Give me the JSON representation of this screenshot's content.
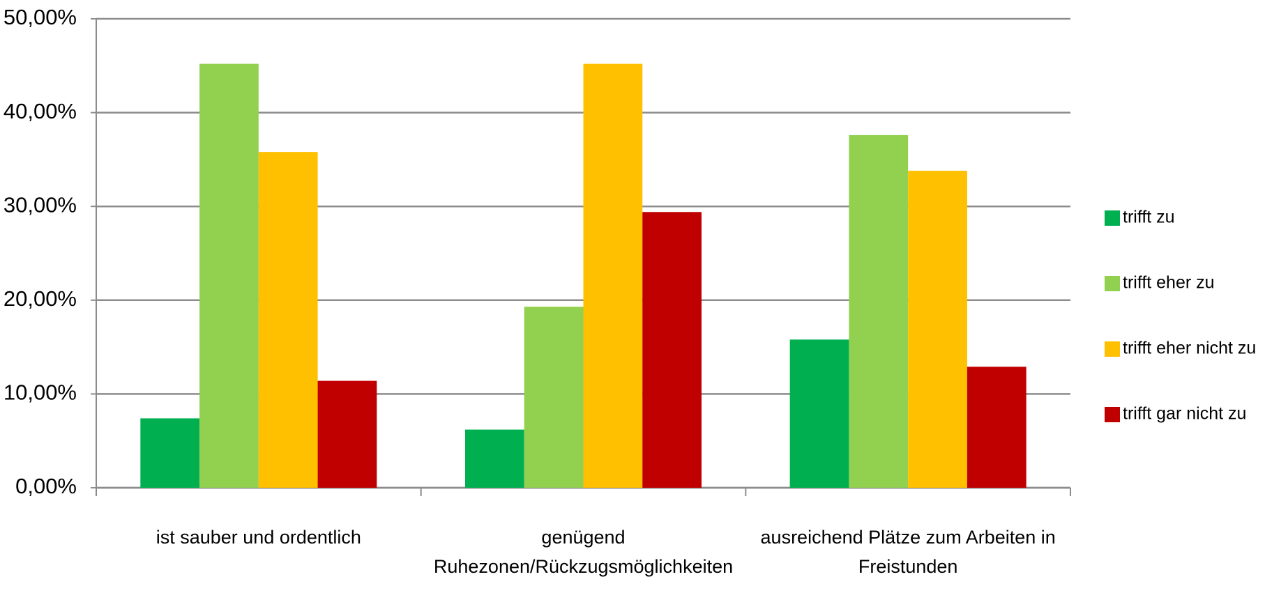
{
  "chart_data": {
    "type": "bar",
    "categories": [
      "ist sauber und ordentlich",
      "genügend Ruhezonen/Rückzugsmöglichkeiten",
      "ausreichend Plätze zum Arbeiten in Freistunden"
    ],
    "series": [
      {
        "name": "trifft zu",
        "color": "#00b050",
        "values": [
          7.4,
          6.2,
          15.8
        ]
      },
      {
        "name": "trifft eher zu",
        "color": "#92d050",
        "values": [
          45.2,
          19.3,
          37.6
        ]
      },
      {
        "name": "trifft eher nicht zu",
        "color": "#ffc000",
        "values": [
          35.8,
          45.2,
          33.8
        ]
      },
      {
        "name": "trifft gar nicht zu",
        "color": "#c00000",
        "values": [
          11.4,
          29.4,
          12.9
        ]
      }
    ],
    "ylim": [
      0,
      50
    ],
    "yticks": [
      {
        "value": 0,
        "label": "0,00%"
      },
      {
        "value": 10,
        "label": "10,00%"
      },
      {
        "value": 20,
        "label": "20,00%"
      },
      {
        "value": 30,
        "label": "30,00%"
      },
      {
        "value": 40,
        "label": "40,00%"
      },
      {
        "value": 50,
        "label": "50,00%"
      }
    ],
    "grid": true,
    "legend": "right"
  }
}
